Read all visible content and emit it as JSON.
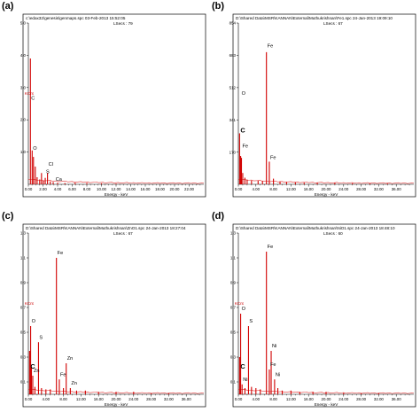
{
  "chart_data": [
    {
      "type": "bar",
      "panel_label": "(a)",
      "header": "c:\\edax32\\genesis\\genmaps.spc  03-Feb-2013 15:52:05",
      "lsecs": "LSecs : 79",
      "kcnt": "KCnt",
      "xlabel": "Energy - keV",
      "xlim": [
        0,
        24
      ],
      "ylim": [
        0,
        5
      ],
      "xticks": [
        "0.00",
        "2.00",
        "4.00",
        "6.00",
        "8.00",
        "10.00",
        "12.00",
        "14.00",
        "16.00",
        "18.00",
        "20.00",
        "22.00"
      ],
      "yticks": [
        "1.0",
        "2.0",
        "3.0",
        "4.0",
        "5.0"
      ],
      "series": [
        {
          "x": [
            0.28,
            0.52,
            0.7,
            0.95,
            1.2,
            1.55,
            1.8,
            2.05,
            2.31,
            2.62,
            3.0,
            3.4,
            4.0,
            5.0,
            6.4,
            8.0,
            10.0,
            12.0
          ],
          "values": [
            3.9,
            1.05,
            0.85,
            0.55,
            0.22,
            0.15,
            0.35,
            0.12,
            0.2,
            0.35,
            0.09,
            0.07,
            0.05,
            0.04,
            0.05,
            0.04,
            0.03,
            0.02
          ]
        }
      ],
      "annotations": [
        {
          "text": "C",
          "x": 0.28,
          "y": 2.6,
          "big": false
        },
        {
          "text": "O",
          "x": 0.52,
          "y": 1.05,
          "big": false
        },
        {
          "text": "Cl",
          "x": 2.62,
          "y": 0.55,
          "big": false
        },
        {
          "text": "S",
          "x": 2.31,
          "y": 0.32,
          "big": false
        },
        {
          "text": "Ca",
          "x": 3.6,
          "y": 0.08,
          "big": false
        }
      ]
    },
    {
      "type": "bar",
      "panel_label": "(b)",
      "header": "D:\\Shared Data\\MSR\\KANNAN\\External\\Muthukrishnan\\Fe1.spc  24-Jan-2013 19:09:10",
      "lsecs": "LSecs : 67",
      "kcnt": "",
      "xlabel": "Energy - keV",
      "xlim": [
        0,
        40
      ],
      "ylim": [
        0,
        854
      ],
      "xticks": [
        "0.00",
        "4.00",
        "8.00",
        "12.00",
        "16.00",
        "20.00",
        "24.00",
        "28.00",
        "32.00",
        "36.00"
      ],
      "yticks": [
        "170",
        "341",
        "512",
        "683",
        "854"
      ],
      "series": [
        {
          "x": [
            0.28,
            0.52,
            0.71,
            1.0,
            1.5,
            2.0,
            3.0,
            4.5,
            5.5,
            6.4,
            7.06,
            8.0,
            9.5,
            11.0,
            13.0,
            15.0,
            18.0,
            22.0,
            26.0,
            30.0,
            34.0
          ],
          "values": [
            270,
            150,
            140,
            60,
            35,
            25,
            20,
            20,
            18,
            700,
            120,
            30,
            15,
            12,
            10,
            9,
            8,
            7,
            6,
            5,
            4
          ]
        }
      ],
      "annotations": [
        {
          "text": "C",
          "x": 0.28,
          "y": 270,
          "big": true
        },
        {
          "text": "O",
          "x": 0.52,
          "y": 470,
          "big": false
        },
        {
          "text": "Fe",
          "x": 0.71,
          "y": 190,
          "big": false
        },
        {
          "text": "Fe",
          "x": 6.4,
          "y": 720,
          "big": false
        },
        {
          "text": "Fe",
          "x": 7.06,
          "y": 130,
          "big": false
        }
      ]
    },
    {
      "type": "bar",
      "panel_label": "(c)",
      "header": "D:\\Shared Data\\MSR\\KANNAN\\External\\Muthukrishnan\\ZnO1.spc  24-Jan-2013 18:27:04",
      "lsecs": "LSecs : 67",
      "kcnt": "KCnt",
      "xlabel": "Energy - keV",
      "xlim": [
        0,
        40
      ],
      "ylim": [
        0,
        1.3
      ],
      "xticks": [
        "0.00",
        "4.00",
        "8.00",
        "12.00",
        "16.00",
        "20.00",
        "24.00",
        "28.00",
        "32.00",
        "36.00"
      ],
      "yticks": [
        "0.1",
        "0.3",
        "0.5",
        "0.7",
        "0.9",
        "1.1",
        "1.3"
      ],
      "series": [
        {
          "x": [
            0.28,
            0.52,
            0.71,
            1.01,
            1.5,
            2.31,
            3.0,
            4.0,
            5.0,
            6.4,
            7.06,
            8.0,
            8.63,
            9.57,
            11.0,
            13.0,
            16.0,
            20.0,
            24.0,
            28.0,
            32.0
          ],
          "values": [
            0.35,
            0.55,
            0.22,
            0.15,
            0.06,
            0.42,
            0.05,
            0.04,
            0.04,
            1.1,
            0.12,
            0.05,
            0.25,
            0.05,
            0.03,
            0.03,
            0.02,
            0.02,
            0.02,
            0.01,
            0.01
          ]
        }
      ],
      "annotations": [
        {
          "text": "C",
          "x": 0.28,
          "y": 0.2,
          "big": true
        },
        {
          "text": "O",
          "x": 0.52,
          "y": 0.57,
          "big": false
        },
        {
          "text": "Zn",
          "x": 1.01,
          "y": 0.17,
          "big": false
        },
        {
          "text": "S",
          "x": 2.31,
          "y": 0.44,
          "big": false
        },
        {
          "text": "Fe",
          "x": 6.4,
          "y": 1.12,
          "big": false
        },
        {
          "text": "Fe",
          "x": 7.06,
          "y": 0.14,
          "big": false
        },
        {
          "text": "Zn",
          "x": 8.63,
          "y": 0.27,
          "big": false
        },
        {
          "text": "Zn",
          "x": 9.57,
          "y": 0.07,
          "big": false
        }
      ]
    },
    {
      "type": "bar",
      "panel_label": "(d)",
      "header": "D:\\Shared Data\\MSR\\KANNAN\\External\\Muthukrishnan\\NiO1.spc  24-Jan-2013 18:48:10",
      "lsecs": "LSecs : 60",
      "kcnt": "KCnt",
      "xlabel": "Energy - keV",
      "xlim": [
        0,
        40
      ],
      "ylim": [
        0,
        1.3
      ],
      "xticks": [
        "0.00",
        "4.00",
        "8.00",
        "12.00",
        "16.00",
        "20.00",
        "24.00",
        "28.00",
        "32.00",
        "36.00"
      ],
      "yticks": [
        "0.1",
        "0.3",
        "0.5",
        "0.7",
        "0.9",
        "1.1",
        "1.3"
      ],
      "series": [
        {
          "x": [
            0.28,
            0.52,
            0.85,
            1.5,
            2.31,
            3.0,
            4.0,
            5.0,
            6.4,
            7.06,
            7.48,
            8.26,
            9.0,
            10.0,
            12.0,
            14.0,
            17.0,
            20.0,
            24.0,
            28.0,
            32.0
          ],
          "values": [
            0.3,
            0.65,
            0.08,
            0.05,
            0.55,
            0.06,
            0.05,
            0.04,
            1.15,
            0.2,
            0.35,
            0.12,
            0.05,
            0.03,
            0.03,
            0.02,
            0.02,
            0.02,
            0.01,
            0.01,
            0.01
          ]
        }
      ],
      "annotations": [
        {
          "text": "C",
          "x": 0.28,
          "y": 0.2,
          "big": true
        },
        {
          "text": "O",
          "x": 0.52,
          "y": 0.67,
          "big": false
        },
        {
          "text": "Ni",
          "x": 0.85,
          "y": 0.1,
          "big": false
        },
        {
          "text": "S",
          "x": 2.31,
          "y": 0.57,
          "big": false
        },
        {
          "text": "Fe",
          "x": 6.4,
          "y": 1.17,
          "big": false
        },
        {
          "text": "Fe",
          "x": 7.06,
          "y": 0.22,
          "big": false
        },
        {
          "text": "Ni",
          "x": 7.48,
          "y": 0.37,
          "big": false
        },
        {
          "text": "Ni",
          "x": 8.26,
          "y": 0.14,
          "big": false
        }
      ]
    }
  ]
}
